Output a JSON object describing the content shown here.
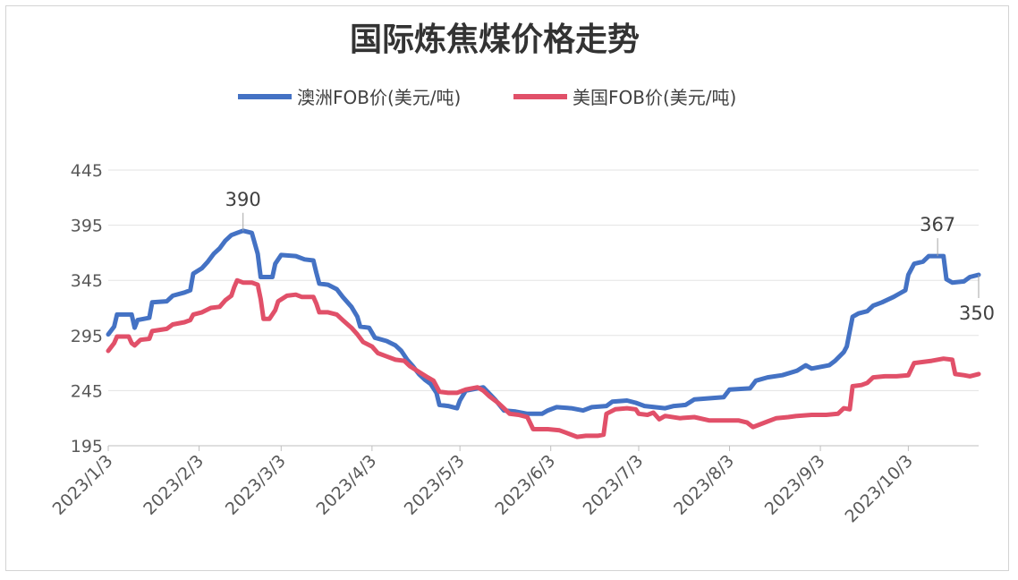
{
  "chart_data": {
    "type": "line",
    "title": "国际炼焦煤价格走势",
    "xlabel": "",
    "ylabel": "",
    "ylim": [
      195,
      445
    ],
    "yticks": [
      195,
      245,
      295,
      345,
      395,
      445
    ],
    "x_tick_labels": [
      "2023/1/3",
      "2023/2/3",
      "2023/3/3",
      "2023/4/3",
      "2023/5/3",
      "2023/6/3",
      "2023/7/3",
      "2023/8/3",
      "2023/9/3",
      "2023/10/3"
    ],
    "x_tick_days": [
      0,
      31,
      59,
      90,
      120,
      151,
      181,
      212,
      243,
      273
    ],
    "x_range_days": [
      0,
      297
    ],
    "legend_position": "top-center",
    "grid": true,
    "series": [
      {
        "name": "澳洲FOB价(美元/吨)",
        "color": "#4472C4",
        "points": [
          [
            0,
            296
          ],
          [
            2,
            303
          ],
          [
            3,
            314
          ],
          [
            8,
            314
          ],
          [
            9,
            302
          ],
          [
            10,
            309
          ],
          [
            14,
            311
          ],
          [
            15,
            325
          ],
          [
            20,
            326
          ],
          [
            22,
            331
          ],
          [
            26,
            334
          ],
          [
            28,
            336
          ],
          [
            29,
            351
          ],
          [
            32,
            356
          ],
          [
            34,
            362
          ],
          [
            36,
            369
          ],
          [
            38,
            374
          ],
          [
            40,
            381
          ],
          [
            42,
            386
          ],
          [
            44,
            388
          ],
          [
            46,
            390
          ],
          [
            49,
            388
          ],
          [
            51,
            369
          ],
          [
            52,
            348
          ],
          [
            56,
            348
          ],
          [
            57,
            360
          ],
          [
            59,
            368
          ],
          [
            64,
            367
          ],
          [
            67,
            364
          ],
          [
            70,
            363
          ],
          [
            71,
            352
          ],
          [
            72,
            342
          ],
          [
            75,
            341
          ],
          [
            78,
            337
          ],
          [
            80,
            330
          ],
          [
            83,
            321
          ],
          [
            85,
            312
          ],
          [
            86,
            303
          ],
          [
            89,
            302
          ],
          [
            91,
            293
          ],
          [
            95,
            290
          ],
          [
            98,
            286
          ],
          [
            100,
            281
          ],
          [
            102,
            273
          ],
          [
            104,
            267
          ],
          [
            106,
            260
          ],
          [
            108,
            255
          ],
          [
            110,
            251
          ],
          [
            112,
            243
          ],
          [
            113,
            232
          ],
          [
            116,
            231
          ],
          [
            119,
            229
          ],
          [
            120,
            236
          ],
          [
            122,
            245
          ],
          [
            128,
            248
          ],
          [
            132,
            237
          ],
          [
            135,
            227
          ],
          [
            139,
            226
          ],
          [
            143,
            224
          ],
          [
            148,
            224
          ],
          [
            150,
            227
          ],
          [
            153,
            230
          ],
          [
            158,
            229
          ],
          [
            162,
            227
          ],
          [
            165,
            230
          ],
          [
            170,
            231
          ],
          [
            172,
            235
          ],
          [
            177,
            236
          ],
          [
            180,
            234
          ],
          [
            183,
            231
          ],
          [
            190,
            229
          ],
          [
            193,
            231
          ],
          [
            197,
            232
          ],
          [
            200,
            237
          ],
          [
            205,
            238
          ],
          [
            210,
            239
          ],
          [
            212,
            246
          ],
          [
            219,
            247
          ],
          [
            221,
            254
          ],
          [
            225,
            257
          ],
          [
            230,
            259
          ],
          [
            235,
            263
          ],
          [
            238,
            268
          ],
          [
            240,
            265
          ],
          [
            246,
            268
          ],
          [
            248,
            272
          ],
          [
            251,
            280
          ],
          [
            252,
            285
          ],
          [
            254,
            312
          ],
          [
            256,
            315
          ],
          [
            259,
            317
          ],
          [
            261,
            322
          ],
          [
            264,
            325
          ],
          [
            268,
            330
          ],
          [
            270,
            333
          ],
          [
            272,
            336
          ],
          [
            273,
            350
          ],
          [
            275,
            360
          ],
          [
            278,
            362
          ],
          [
            280,
            367
          ],
          [
            285,
            367
          ],
          [
            286,
            346
          ],
          [
            288,
            343
          ],
          [
            292,
            344
          ],
          [
            294,
            348
          ],
          [
            297,
            350
          ]
        ]
      },
      {
        "name": "美国FOB价(美元/吨)",
        "color": "#E15069",
        "points": [
          [
            0,
            281
          ],
          [
            2,
            288
          ],
          [
            3,
            294
          ],
          [
            7,
            294
          ],
          [
            8,
            288
          ],
          [
            9,
            286
          ],
          [
            11,
            291
          ],
          [
            14,
            292
          ],
          [
            15,
            299
          ],
          [
            20,
            301
          ],
          [
            22,
            305
          ],
          [
            26,
            307
          ],
          [
            28,
            309
          ],
          [
            29,
            314
          ],
          [
            32,
            316
          ],
          [
            35,
            320
          ],
          [
            38,
            321
          ],
          [
            40,
            327
          ],
          [
            42,
            331
          ],
          [
            43,
            339
          ],
          [
            44,
            345
          ],
          [
            46,
            343
          ],
          [
            49,
            343
          ],
          [
            51,
            341
          ],
          [
            52,
            328
          ],
          [
            53,
            310
          ],
          [
            55,
            310
          ],
          [
            57,
            318
          ],
          [
            58,
            326
          ],
          [
            61,
            331
          ],
          [
            64,
            332
          ],
          [
            66,
            330
          ],
          [
            70,
            330
          ],
          [
            71,
            324
          ],
          [
            72,
            316
          ],
          [
            75,
            316
          ],
          [
            78,
            314
          ],
          [
            80,
            309
          ],
          [
            83,
            302
          ],
          [
            85,
            296
          ],
          [
            87,
            289
          ],
          [
            90,
            285
          ],
          [
            92,
            279
          ],
          [
            95,
            276
          ],
          [
            98,
            273
          ],
          [
            101,
            272
          ],
          [
            103,
            267
          ],
          [
            106,
            262
          ],
          [
            109,
            257
          ],
          [
            111,
            254
          ],
          [
            113,
            244
          ],
          [
            116,
            243
          ],
          [
            119,
            243
          ],
          [
            122,
            246
          ],
          [
            126,
            248
          ],
          [
            128,
            245
          ],
          [
            130,
            240
          ],
          [
            133,
            234
          ],
          [
            135,
            229
          ],
          [
            137,
            224
          ],
          [
            140,
            223
          ],
          [
            143,
            221
          ],
          [
            145,
            210
          ],
          [
            150,
            210
          ],
          [
            154,
            209
          ],
          [
            156,
            207
          ],
          [
            160,
            203
          ],
          [
            163,
            204
          ],
          [
            167,
            204
          ],
          [
            169,
            205
          ],
          [
            170,
            224
          ],
          [
            173,
            228
          ],
          [
            177,
            229
          ],
          [
            180,
            228
          ],
          [
            181,
            224
          ],
          [
            184,
            223
          ],
          [
            186,
            225
          ],
          [
            188,
            219
          ],
          [
            190,
            222
          ],
          [
            195,
            220
          ],
          [
            200,
            221
          ],
          [
            205,
            218
          ],
          [
            210,
            218
          ],
          [
            215,
            218
          ],
          [
            218,
            216
          ],
          [
            220,
            212
          ],
          [
            222,
            214
          ],
          [
            225,
            217
          ],
          [
            228,
            220
          ],
          [
            232,
            221
          ],
          [
            235,
            222
          ],
          [
            240,
            223
          ],
          [
            245,
            223
          ],
          [
            249,
            224
          ],
          [
            251,
            229
          ],
          [
            253,
            228
          ],
          [
            254,
            249
          ],
          [
            257,
            250
          ],
          [
            259,
            252
          ],
          [
            261,
            257
          ],
          [
            265,
            258
          ],
          [
            269,
            258
          ],
          [
            273,
            259
          ],
          [
            275,
            270
          ],
          [
            278,
            271
          ],
          [
            281,
            272
          ],
          [
            285,
            274
          ],
          [
            288,
            273
          ],
          [
            289,
            260
          ],
          [
            292,
            259
          ],
          [
            294,
            258
          ],
          [
            297,
            260
          ]
        ]
      }
    ],
    "annotations": [
      {
        "label": "390",
        "day": 46,
        "value": 390
      },
      {
        "label": "367",
        "day": 283,
        "value": 367
      },
      {
        "label": "350",
        "day": 297,
        "value": 350
      }
    ]
  }
}
